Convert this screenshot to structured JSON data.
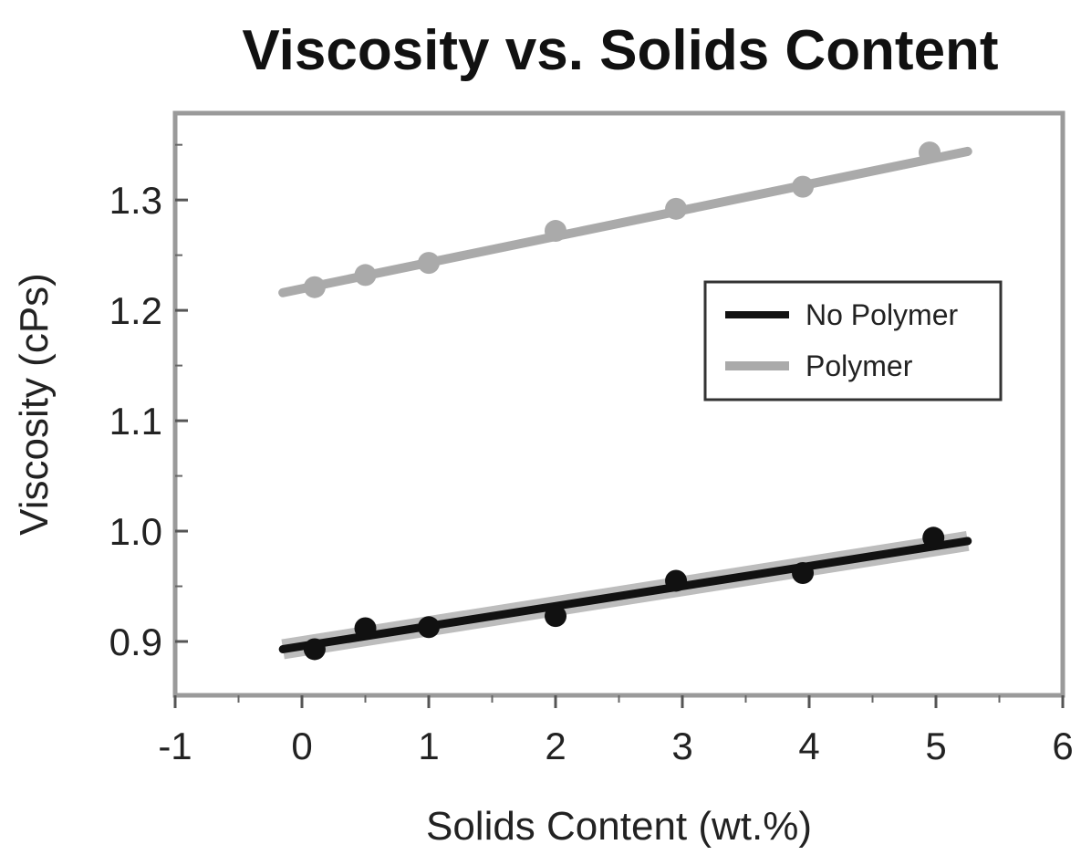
{
  "chart_data": {
    "type": "scatter",
    "title": "Viscosity vs. Solids Content",
    "xlabel": "Solids Content (wt.%)",
    "ylabel": "Viscosity (cPs)",
    "xlim": [
      -1,
      6
    ],
    "ylim": [
      0.85,
      1.35
    ],
    "xticks": [
      "-1",
      "0",
      "1",
      "2",
      "3",
      "4",
      "5",
      "6"
    ],
    "yticks": [
      "0.9",
      "1.0",
      "1.1",
      "1.2",
      "1.3"
    ],
    "legend_position": "right",
    "series": [
      {
        "name": "No Polymer",
        "color": "#111111",
        "points": [
          {
            "x": 0.1,
            "y": 0.893
          },
          {
            "x": 0.5,
            "y": 0.912
          },
          {
            "x": 1.0,
            "y": 0.913
          },
          {
            "x": 2.0,
            "y": 0.923
          },
          {
            "x": 2.95,
            "y": 0.955
          },
          {
            "x": 3.95,
            "y": 0.962
          },
          {
            "x": 4.98,
            "y": 0.994
          }
        ],
        "fit": {
          "x": [
            -0.15,
            5.25
          ],
          "y": [
            0.893,
            0.991
          ]
        }
      },
      {
        "name": "Polymer",
        "color": "#aaaaaa",
        "points": [
          {
            "x": 0.1,
            "y": 1.221
          },
          {
            "x": 0.5,
            "y": 1.232
          },
          {
            "x": 1.0,
            "y": 1.243
          },
          {
            "x": 2.0,
            "y": 1.272
          },
          {
            "x": 2.95,
            "y": 1.292
          },
          {
            "x": 3.95,
            "y": 1.312
          },
          {
            "x": 4.95,
            "y": 1.343
          }
        ],
        "fit": {
          "x": [
            -0.15,
            5.25
          ],
          "y": [
            1.216,
            1.344
          ]
        }
      }
    ]
  }
}
